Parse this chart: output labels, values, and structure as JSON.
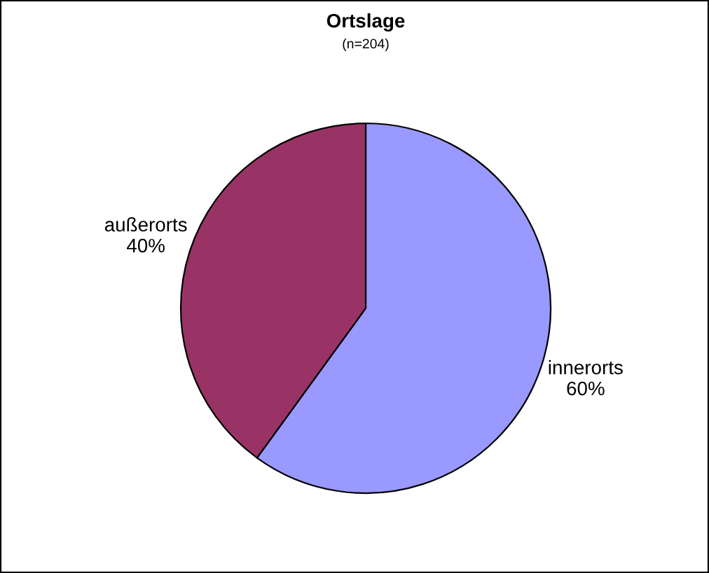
{
  "chart_data": {
    "type": "pie",
    "title": "Ortslage",
    "subtitle": "(n=204)",
    "categories": [
      "innerorts",
      "außerorts"
    ],
    "values": [
      60,
      40
    ],
    "value_labels": [
      "60%",
      "40%"
    ],
    "colors": [
      "#9999ff",
      "#993366"
    ],
    "legend": false
  }
}
